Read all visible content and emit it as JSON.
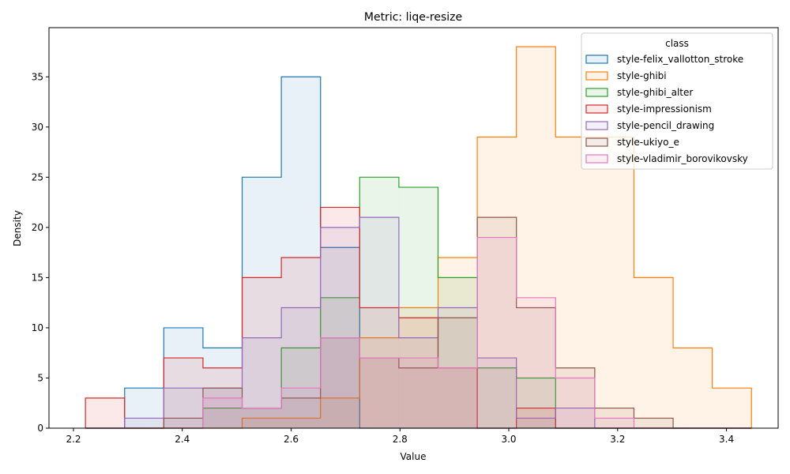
{
  "chart_data": {
    "type": "histogram",
    "title": "Metric: liqe-resize",
    "xlabel": "Value",
    "ylabel": "Density",
    "xlim": [
      2.155,
      3.495
    ],
    "ylim": [
      0,
      39.9
    ],
    "x_ticks": [
      2.2,
      2.4,
      2.6,
      2.8,
      3.0,
      3.2,
      3.4
    ],
    "x_tick_labels": [
      "2.2",
      "2.4",
      "2.6",
      "2.8",
      "3.0",
      "3.2",
      "3.4"
    ],
    "y_ticks": [
      0,
      5,
      10,
      15,
      20,
      25,
      30,
      35
    ],
    "y_tick_labels": [
      "0",
      "5",
      "10",
      "15",
      "20",
      "25",
      "30",
      "35"
    ],
    "bin_edges": [
      2.222,
      2.294,
      2.366,
      2.438,
      2.51,
      2.582,
      2.654,
      2.726,
      2.798,
      2.87,
      2.942,
      3.014,
      3.086,
      3.158,
      3.23,
      3.302,
      3.374,
      3.446
    ],
    "legend": {
      "title": "class",
      "position": "upper right"
    },
    "series": [
      {
        "name": "style-felix_vallotton_stroke",
        "color": "#1f77b4",
        "values": [
          0,
          4,
          10,
          8,
          25,
          35,
          18,
          0,
          0,
          0,
          0,
          0,
          0,
          0,
          0,
          0,
          0
        ]
      },
      {
        "name": "style-ghibi",
        "color": "#ff7f0e",
        "values": [
          0,
          0,
          0,
          0,
          1,
          1,
          3,
          9,
          12,
          17,
          29,
          38,
          29,
          29,
          15,
          8,
          4
        ]
      },
      {
        "name": "style-ghibi_alter",
        "color": "#2ca02c",
        "values": [
          0,
          0,
          0,
          2,
          2,
          8,
          13,
          25,
          24,
          15,
          6,
          5,
          0,
          0,
          0,
          0,
          0
        ]
      },
      {
        "name": "style-impressionism",
        "color": "#d62728",
        "values": [
          3,
          0,
          7,
          6,
          15,
          17,
          22,
          12,
          11,
          6,
          0,
          2,
          0,
          0,
          0,
          0,
          0
        ]
      },
      {
        "name": "style-pencil_drawing",
        "color": "#9467bd",
        "values": [
          0,
          1,
          4,
          4,
          9,
          12,
          20,
          21,
          9,
          12,
          7,
          1,
          2,
          0,
          0,
          0,
          0
        ]
      },
      {
        "name": "style-ukiyo_e",
        "color": "#8c564b",
        "values": [
          0,
          0,
          1,
          4,
          2,
          3,
          9,
          7,
          6,
          11,
          21,
          12,
          6,
          2,
          1,
          0,
          0
        ]
      },
      {
        "name": "style-vladimir_borovikovsky",
        "color": "#e377c2",
        "values": [
          0,
          0,
          0,
          3,
          2,
          4,
          9,
          7,
          7,
          6,
          19,
          13,
          5,
          1,
          0,
          0,
          0
        ]
      }
    ]
  }
}
